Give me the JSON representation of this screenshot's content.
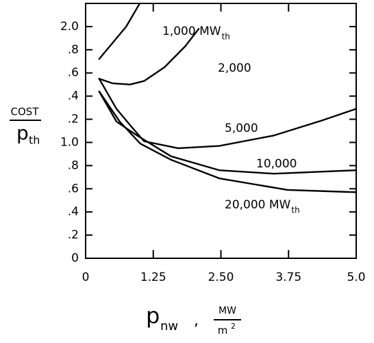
{
  "chart_data": {
    "type": "line",
    "xlim": [
      0,
      5
    ],
    "ylim": [
      0,
      2.2
    ],
    "xticks": [
      0,
      1.25,
      {
        "value": 2.5,
        "label": "2.50"
      },
      3.75,
      {
        "value": 5,
        "label": "5.0"
      }
    ],
    "yticks": [
      0,
      {
        "value": 0.2,
        "label": ".2"
      },
      {
        "value": 0.4,
        "label": ".4"
      },
      {
        "value": 0.6,
        "label": ".6"
      },
      {
        "value": 0.8,
        "label": ".8"
      },
      {
        "value": 1.0,
        "label": "1.0"
      },
      {
        "value": 1.2,
        "label": ".2"
      },
      {
        "value": 1.4,
        "label": ".4"
      },
      {
        "value": 1.6,
        "label": ".6"
      },
      {
        "value": 1.8,
        "label": ".8"
      },
      {
        "value": 2.0,
        "label": "2.0"
      }
    ],
    "ylabel": {
      "numerator": "COST",
      "denominator": "p",
      "denominator_subscript": "th"
    },
    "xlabel": {
      "symbol": "p",
      "subscript": "nw",
      "separator": ",",
      "unit_numerator": "MW",
      "unit_denominator": "m",
      "unit_denominator_superscript": "2"
    },
    "series": [
      {
        "name": "1,000 MW",
        "subscript": "th",
        "color": "#000000",
        "x": [
          0.25,
          0.5,
          0.75,
          1.0
        ],
        "values": [
          1.72,
          1.86,
          2.0,
          2.2
        ]
      },
      {
        "name": "2,000",
        "color": "#000000",
        "x": [
          0.25,
          0.5,
          0.82,
          1.08,
          1.46,
          1.84,
          2.09
        ],
        "values": [
          1.55,
          1.51,
          1.5,
          1.53,
          1.65,
          1.83,
          1.98
        ]
      },
      {
        "name": "5,000",
        "color": "#000000",
        "x": [
          0.25,
          0.57,
          0.82,
          1.08,
          1.71,
          2.47,
          3.48,
          4.37,
          5.0
        ],
        "values": [
          1.55,
          1.29,
          1.15,
          1.01,
          0.95,
          0.97,
          1.06,
          1.19,
          1.29
        ]
      },
      {
        "name": "10,000",
        "color": "#000000",
        "x": [
          0.25,
          0.57,
          0.95,
          1.58,
          2.47,
          3.48,
          5.0
        ],
        "values": [
          1.44,
          1.18,
          1.06,
          0.88,
          0.76,
          0.73,
          0.76
        ]
      },
      {
        "name": "20,000 MW",
        "subscript": "th",
        "color": "#000000",
        "x": [
          0.25,
          0.63,
          1.01,
          1.58,
          2.47,
          3.73,
          5.0
        ],
        "values": [
          1.44,
          1.18,
          0.99,
          0.85,
          0.69,
          0.59,
          0.57
        ]
      }
    ]
  }
}
